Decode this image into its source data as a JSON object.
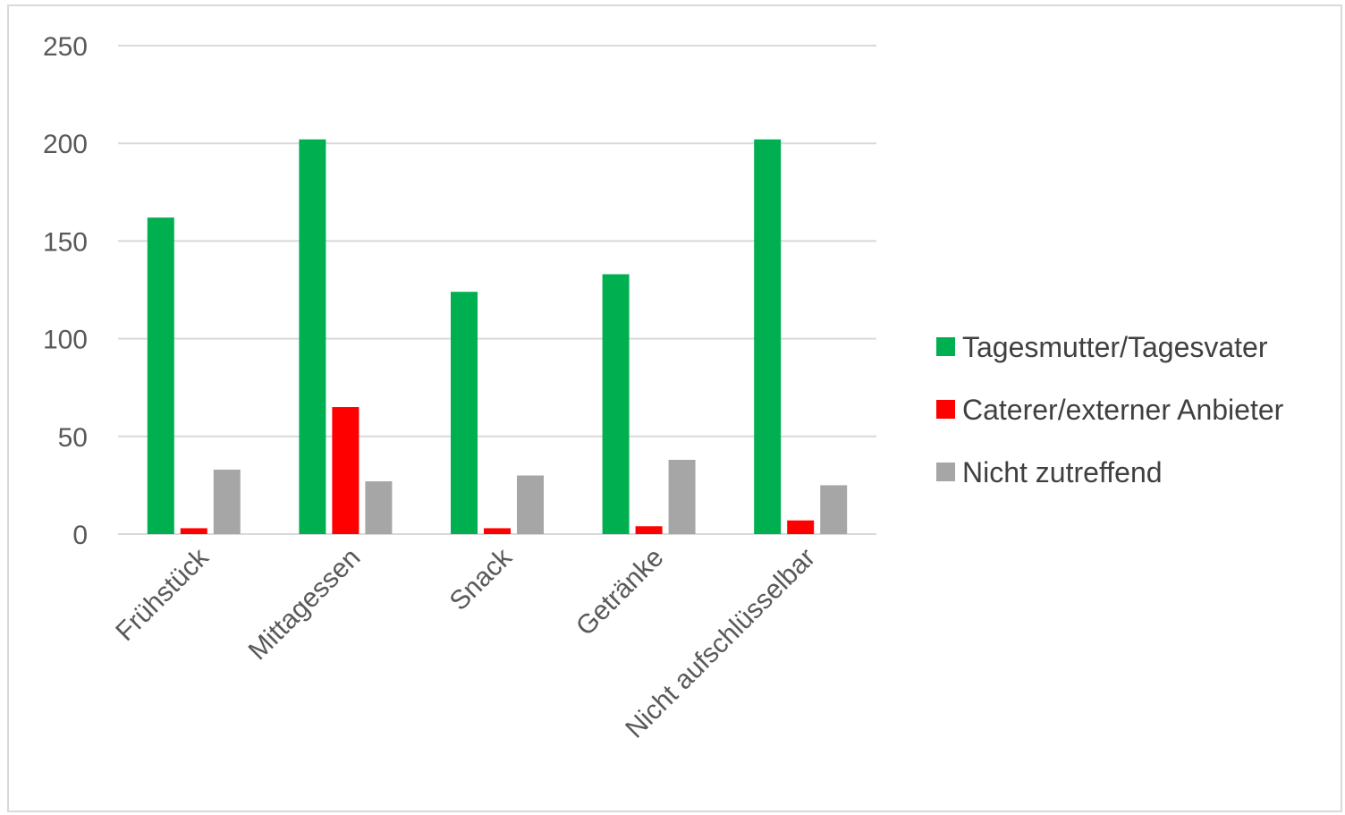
{
  "chart_data": {
    "type": "bar",
    "title": "",
    "xlabel": "",
    "ylabel": "",
    "ylim": [
      0,
      250
    ],
    "yticks": [
      0,
      50,
      100,
      150,
      200,
      250
    ],
    "grid": true,
    "legend_position": "right",
    "categories": [
      "Frühstück",
      "Mittagessen",
      "Snack",
      "Getränke",
      "Nicht aufschlüsselbar"
    ],
    "series": [
      {
        "name": "Tagesmutter/Tagesvater",
        "color": "#00b050",
        "values": [
          162,
          202,
          124,
          133,
          202
        ]
      },
      {
        "name": "Caterer/externer Anbieter",
        "color": "#ff0000",
        "values": [
          3,
          65,
          3,
          4,
          7
        ]
      },
      {
        "name": "Nicht zutreffend",
        "color": "#a6a6a6",
        "values": [
          33,
          27,
          30,
          38,
          25
        ]
      }
    ]
  }
}
